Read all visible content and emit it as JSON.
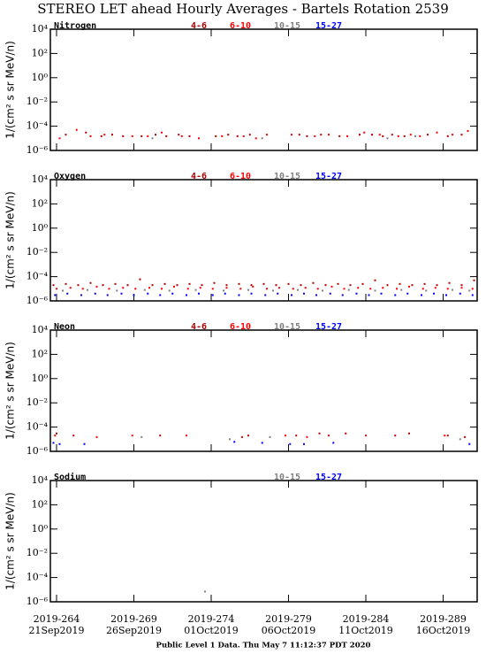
{
  "header": {
    "title": "STEREO LET ahead Hourly Averages - Bartels Rotation 2539"
  },
  "footer": "Public Level 1 Data. Thu May  7 11:12:37 PDT 2020",
  "chart_data": [
    {
      "type": "scatter",
      "panel_label": "Nitrogen",
      "ylabel": "1/(cm² s sr MeV/n)",
      "log_y": true,
      "xlim": [
        263.6,
        291.2
      ],
      "xticks": [
        264,
        269,
        274,
        279,
        284,
        289
      ],
      "ylim": [
        1e-06,
        10000
      ],
      "yticks": [
        {
          "value": 10000,
          "label": "10⁴"
        },
        {
          "value": 100,
          "label": "10²"
        },
        {
          "value": 1,
          "label": "10⁰"
        },
        {
          "value": 0.01,
          "label": "10⁻²"
        },
        {
          "value": 0.0001,
          "label": "10⁻⁴"
        },
        {
          "value": 1e-06,
          "label": "10⁻⁶"
        }
      ],
      "series": [
        {
          "name": "4-6",
          "color": "#b00000",
          "x": [
            264.6,
            265.9,
            266.9,
            267.6,
            268.3,
            269.5,
            270.4,
            271.1,
            271.9,
            272.6,
            274.3,
            275.1,
            275.7,
            276.5,
            279.7,
            280.2,
            281.1,
            282.3,
            283.6,
            284.4,
            285.1,
            285.7,
            286.5,
            288.0,
            289.3,
            290.2
          ],
          "values": [
            2e-05,
            3e-05,
            1.5e-05,
            2e-05,
            1.5e-05,
            1.5e-05,
            2e-05,
            1.5e-05,
            2e-05,
            1.5e-05,
            1.5e-05,
            2e-05,
            1.5e-05,
            2e-05,
            2e-05,
            1.5e-05,
            2e-05,
            1.5e-05,
            2e-05,
            2e-05,
            1.5e-05,
            2e-05,
            1.5e-05,
            2e-05,
            1.5e-05,
            2e-05
          ]
        },
        {
          "name": "6-10",
          "color": "#ff0000",
          "x": [
            264.2,
            265.3,
            266.2,
            267.1,
            268.9,
            269.9,
            270.8,
            272.1,
            273.2,
            274.7,
            276.1,
            276.9,
            277.6,
            279.2,
            280.7,
            281.6,
            282.8,
            283.9,
            284.9,
            286.1,
            286.9,
            287.5,
            288.6,
            289.6,
            290.6
          ],
          "values": [
            1e-05,
            5e-05,
            1.5e-05,
            2e-05,
            1.5e-05,
            1.5e-05,
            3e-05,
            1.5e-05,
            1e-05,
            1.5e-05,
            1.5e-05,
            1e-05,
            2e-05,
            2e-05,
            1.5e-05,
            2e-05,
            1.5e-05,
            3e-05,
            2e-05,
            1.5e-05,
            2e-05,
            1.5e-05,
            3e-05,
            2e-05,
            4e-05
          ]
        },
        {
          "name": "10-15",
          "color": "#808080",
          "x": [
            270.2,
            277.3,
            285.4,
            287.2
          ],
          "values": [
            1e-05,
            1e-05,
            1e-05,
            1.5e-05
          ]
        },
        {
          "name": "15-27",
          "color": "#0000ff",
          "x": [],
          "values": []
        }
      ]
    },
    {
      "type": "scatter",
      "panel_label": "Oxygen",
      "ylabel": "1/(cm² s sr MeV/n)",
      "log_y": true,
      "xlim": [
        263.6,
        291.2
      ],
      "xticks": [
        264,
        269,
        274,
        279,
        284,
        289
      ],
      "ylim": [
        1e-06,
        10000
      ],
      "yticks": [
        {
          "value": 10000,
          "label": "10⁴"
        },
        {
          "value": 100,
          "label": "10²"
        },
        {
          "value": 1,
          "label": "10⁰"
        },
        {
          "value": 0.01,
          "label": "10⁻²"
        },
        {
          "value": 0.0001,
          "label": "10⁻⁴"
        },
        {
          "value": 1e-06,
          "label": "10⁻⁶"
        }
      ],
      "series": [
        {
          "name": "4-6",
          "color": "#b00000",
          "x": [
            263.8,
            264.6,
            265.4,
            266.2,
            267.0,
            267.8,
            268.6,
            269.4,
            270.2,
            271.0,
            271.8,
            272.6,
            273.4,
            274.2,
            275.0,
            275.8,
            276.6,
            277.4,
            278.2,
            279.0,
            279.8,
            280.6,
            281.4,
            282.2,
            283.0,
            283.8,
            284.6,
            285.4,
            286.2,
            287.0,
            287.8,
            288.6,
            289.4,
            290.2,
            291.0
          ],
          "values": [
            2e-05,
            2.5e-05,
            2e-05,
            3e-05,
            2e-05,
            2.5e-05,
            2e-05,
            6e-05,
            2e-05,
            2.5e-05,
            2e-05,
            2.5e-05,
            2e-05,
            3e-05,
            2e-05,
            2.5e-05,
            2e-05,
            2.5e-05,
            2e-05,
            2.5e-05,
            2e-05,
            3e-05,
            2e-05,
            2.5e-05,
            2e-05,
            2.5e-05,
            5e-05,
            2e-05,
            2.5e-05,
            2e-05,
            2.5e-05,
            2e-05,
            3e-05,
            2e-05,
            5e-05
          ]
        },
        {
          "name": "6-10",
          "color": "#ff0000",
          "x": [
            264.0,
            264.9,
            265.7,
            266.6,
            267.4,
            268.3,
            269.1,
            270.0,
            270.8,
            271.6,
            272.5,
            273.3,
            274.1,
            275.0,
            275.9,
            276.7,
            277.6,
            278.4,
            279.3,
            280.1,
            280.9,
            281.8,
            282.6,
            283.5,
            284.3,
            285.1,
            286.0,
            286.8,
            287.7,
            288.5,
            289.3,
            290.2,
            290.9
          ],
          "values": [
            1e-05,
            1.2e-05,
            1e-05,
            1.5e-05,
            1e-05,
            1.2e-05,
            1e-05,
            1.2e-05,
            1e-05,
            1.5e-05,
            1e-05,
            1.2e-05,
            1e-05,
            1.2e-05,
            1e-05,
            1.5e-05,
            1e-05,
            1.2e-05,
            1e-05,
            1.2e-05,
            1e-05,
            1.5e-05,
            1e-05,
            1.2e-05,
            1e-05,
            1.2e-05,
            1e-05,
            1.5e-05,
            1e-05,
            1.2e-05,
            1e-05,
            1.2e-05,
            1e-05
          ]
        },
        {
          "name": "10-15",
          "color": "#808080",
          "x": [
            264.4,
            266.0,
            267.9,
            269.7,
            271.3,
            273.0,
            274.8,
            276.4,
            278.0,
            279.6,
            281.2,
            282.9,
            284.6,
            286.3,
            287.9,
            289.6,
            290.7
          ],
          "values": [
            7e-06,
            8e-06,
            7e-06,
            8e-06,
            7e-06,
            8e-06,
            7e-06,
            8e-06,
            7e-06,
            8e-06,
            7e-06,
            8e-06,
            7e-06,
            8e-06,
            7e-06,
            8e-06,
            7e-06
          ]
        },
        {
          "name": "15-27",
          "color": "#0000ff",
          "x": [
            263.9,
            264.7,
            265.6,
            266.5,
            267.3,
            268.2,
            269.0,
            269.9,
            270.7,
            271.5,
            272.4,
            273.2,
            274.1,
            274.9,
            275.8,
            276.6,
            277.5,
            278.3,
            279.2,
            280.0,
            280.8,
            281.7,
            282.5,
            283.4,
            284.2,
            285.0,
            285.9,
            286.7,
            287.6,
            288.4,
            289.2,
            290.1,
            290.9
          ],
          "values": [
            3e-06,
            4e-06,
            3e-06,
            4e-06,
            3e-06,
            4e-06,
            3e-06,
            4e-06,
            3e-06,
            4e-06,
            3e-06,
            4e-06,
            3e-06,
            4e-06,
            3e-06,
            4e-06,
            3e-06,
            4e-06,
            3e-06,
            4e-06,
            3e-06,
            4e-06,
            3e-06,
            4e-06,
            3e-06,
            4e-06,
            3e-06,
            4e-06,
            3e-06,
            4e-06,
            3e-06,
            4e-06,
            3e-06
          ]
        }
      ]
    },
    {
      "type": "scatter",
      "panel_label": "Neon",
      "ylabel": "1/(cm² s sr MeV/n)",
      "log_y": true,
      "xlim": [
        263.6,
        291.2
      ],
      "xticks": [
        264,
        269,
        274,
        279,
        284,
        289
      ],
      "ylim": [
        1e-06,
        10000
      ],
      "yticks": [
        {
          "value": 10000,
          "label": "10⁴"
        },
        {
          "value": 100,
          "label": "10²"
        },
        {
          "value": 1,
          "label": "10⁰"
        },
        {
          "value": 0.01,
          "label": "10⁻²"
        },
        {
          "value": 0.0001,
          "label": "10⁻⁴"
        },
        {
          "value": 1e-06,
          "label": "10⁻⁶"
        }
      ],
      "series": [
        {
          "name": "4-6",
          "color": "#b00000",
          "x": [
            264.0,
            265.1,
            270.7,
            276.4,
            279.5,
            281.0,
            282.7,
            285.9,
            286.8,
            289.3
          ],
          "values": [
            3e-05,
            2e-05,
            2e-05,
            2e-05,
            2e-05,
            3e-05,
            3e-05,
            2e-05,
            3e-05,
            2e-05
          ]
        },
        {
          "name": "6-10",
          "color": "#ff0000",
          "x": [
            263.9,
            266.6,
            268.9,
            272.4,
            276.0,
            278.8,
            280.2,
            281.6,
            284.0,
            289.1,
            290.4
          ],
          "values": [
            2e-05,
            1.5e-05,
            2e-05,
            2e-05,
            1.5e-05,
            2e-05,
            1.5e-05,
            2e-05,
            2e-05,
            2e-05,
            1.5e-05
          ]
        },
        {
          "name": "10-15",
          "color": "#808080",
          "x": [
            269.5,
            275.2,
            277.8,
            290.1
          ],
          "values": [
            1.5e-05,
            1e-05,
            1.5e-05,
            1e-05
          ]
        },
        {
          "name": "15-27",
          "color": "#0000ff",
          "x": [
            263.8,
            264.2,
            265.8,
            275.5,
            277.3,
            279.1,
            280.0,
            281.9,
            290.7
          ],
          "values": [
            5e-06,
            4e-06,
            4e-06,
            6e-06,
            5e-06,
            4e-06,
            4e-06,
            5e-06,
            4e-06
          ]
        }
      ]
    },
    {
      "type": "scatter",
      "panel_label": "Sodium",
      "ylabel": "1/(cm² s sr MeV/n)",
      "log_y": true,
      "xlim": [
        263.6,
        291.2
      ],
      "xticks": [
        {
          "value": 264,
          "label": "2019-264"
        },
        {
          "value": 269,
          "label": "2019-269"
        },
        {
          "value": 274,
          "label": "2019-274"
        },
        {
          "value": 279,
          "label": "2019-279"
        },
        {
          "value": 284,
          "label": "2019-284"
        },
        {
          "value": 289,
          "label": "2019-289"
        }
      ],
      "xtick_dates": [
        "21Sep2019",
        "26Sep2019",
        "01Oct2019",
        "06Oct2019",
        "11Oct2019",
        "16Oct2019"
      ],
      "ylim": [
        1e-06,
        10000
      ],
      "yticks": [
        {
          "value": 10000,
          "label": "10⁴"
        },
        {
          "value": 100,
          "label": "10²"
        },
        {
          "value": 1,
          "label": "10⁰"
        },
        {
          "value": 0.01,
          "label": "10⁻²"
        },
        {
          "value": 0.0001,
          "label": "10⁻⁴"
        },
        {
          "value": 1e-06,
          "label": "10⁻⁶"
        }
      ],
      "series": [
        {
          "name": "10-15",
          "color": "#808080",
          "x": [
            273.6
          ],
          "values": [
            7e-06
          ]
        },
        {
          "name": "15-27",
          "color": "#0000ff",
          "x": [],
          "values": []
        }
      ]
    }
  ]
}
